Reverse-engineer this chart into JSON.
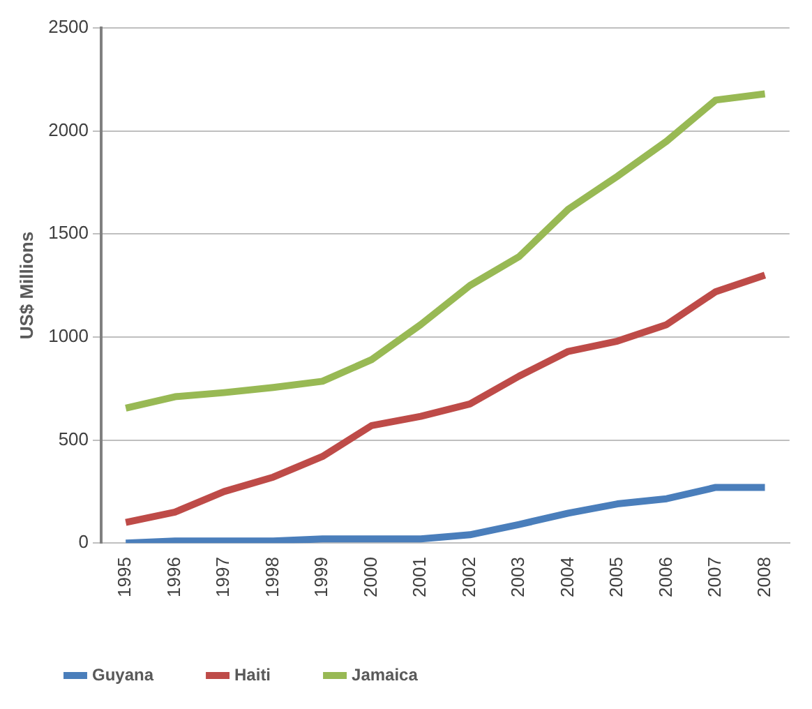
{
  "chart_data": {
    "type": "line",
    "ylabel": "US$ Millions",
    "categories": [
      "1995",
      "1996",
      "1997",
      "1998",
      "1999",
      "2000",
      "2001",
      "2002",
      "2003",
      "2004",
      "2005",
      "2006",
      "2007",
      "2008"
    ],
    "series": [
      {
        "name": "Guyana",
        "color": "#4a7ebb",
        "values": [
          0,
          10,
          10,
          10,
          20,
          20,
          20,
          40,
          90,
          145,
          190,
          215,
          270,
          270
        ]
      },
      {
        "name": "Haiti",
        "color": "#be4b48",
        "values": [
          100,
          150,
          250,
          320,
          420,
          570,
          615,
          675,
          810,
          930,
          980,
          1060,
          1220,
          1300
        ]
      },
      {
        "name": "Jamaica",
        "color": "#98b954",
        "values": [
          655,
          710,
          730,
          755,
          785,
          890,
          1060,
          1250,
          1390,
          1620,
          1780,
          1950,
          2150,
          2180
        ]
      }
    ],
    "ylim": [
      0,
      2500
    ],
    "yticks": [
      0,
      500,
      1000,
      1500,
      2000,
      2500
    ],
    "grid": "y",
    "legend": "bottom left",
    "marker": "none",
    "line_style": "solid"
  }
}
